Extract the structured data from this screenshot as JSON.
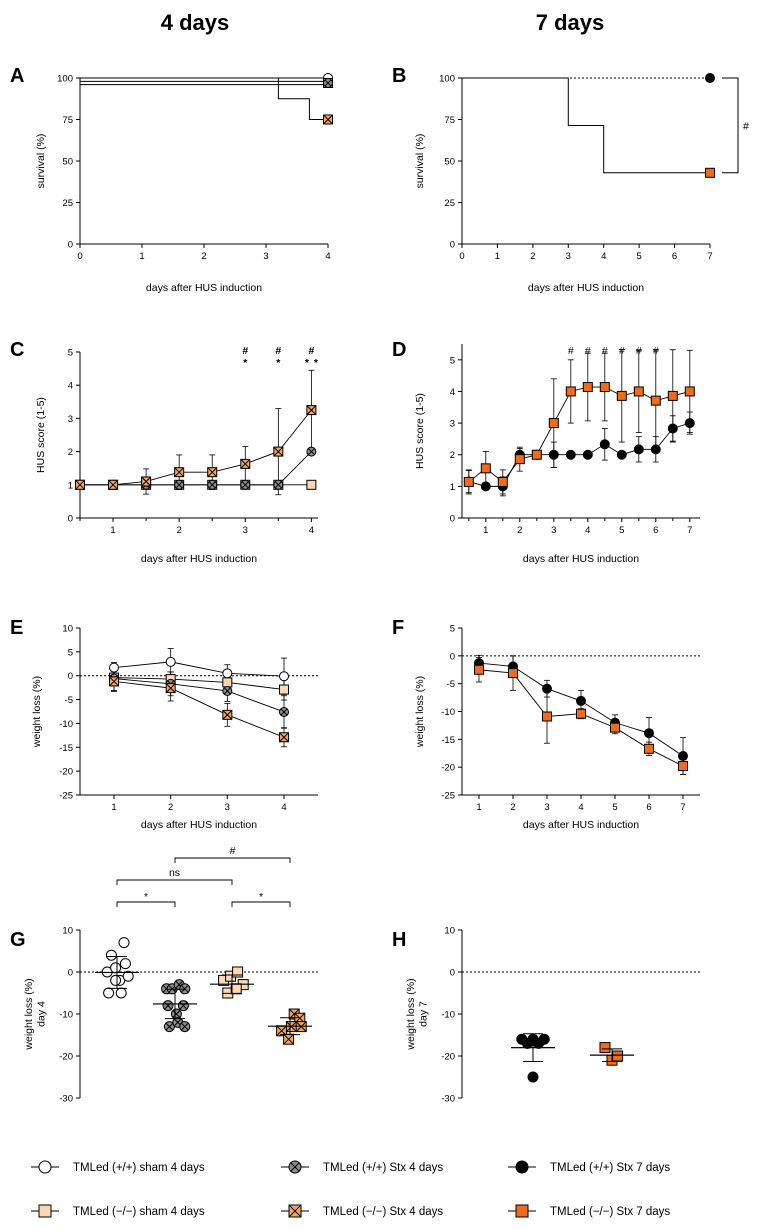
{
  "headers": {
    "left": "4 days",
    "right": "7 days"
  },
  "colors": {
    "wt_sham": "#ffffff",
    "wt_stx4": "#8c8c8c",
    "wt_stx7": "#000000",
    "ko_sham": "#fcd9b1",
    "ko_stx4": "#f3a55b",
    "ko_stx7": "#f26a1b",
    "star_orange": "#f5a623",
    "line": "#000000"
  },
  "legend": [
    {
      "key": "wt_sham",
      "label": "TMLed (+/+) sham 4 days",
      "marker": "circle-open-icon"
    },
    {
      "key": "wt_stx4",
      "label": "TMLed (+/+) Stx 4 days",
      "marker": "circle-cross-icon"
    },
    {
      "key": "wt_stx7",
      "label": "TMLed (+/+) Stx 7 days",
      "marker": "circle-filled-icon"
    },
    {
      "key": "ko_sham",
      "label": "TMLed (−/−) sham 4 days",
      "marker": "square-open-icon"
    },
    {
      "key": "ko_stx4",
      "label": "TMLed (−/−) Stx 4 days",
      "marker": "square-cross-icon"
    },
    {
      "key": "ko_stx7",
      "label": "TMLed (−/−) Stx 7 days",
      "marker": "square-filled-icon"
    }
  ],
  "chart_data": [
    {
      "panel": "A",
      "type": "line",
      "ylabel": "survival (%)",
      "xlabel": "days after HUS induction",
      "xlim": [
        0,
        4
      ],
      "ylim": [
        0,
        100
      ],
      "xticks": [
        0,
        1,
        2,
        3,
        4
      ],
      "yticks": [
        0,
        25,
        50,
        75,
        100
      ],
      "series": [
        {
          "key": "wt_sham",
          "name": "TMLed (+/+) sham 4 days",
          "step_x": [
            0,
            4
          ],
          "step_y": [
            100,
            100
          ],
          "marker_x": 4,
          "marker_y": 100
        },
        {
          "key": "ko_sham",
          "name": "TMLed (−/−) sham 4 days",
          "step_x": [
            0,
            4
          ],
          "step_y": [
            98,
            98
          ],
          "marker_x": 4,
          "marker_y": 97
        },
        {
          "key": "wt_stx4",
          "name": "TMLed (+/+) Stx 4 days",
          "step_x": [
            0,
            4
          ],
          "step_y": [
            96,
            96
          ],
          "marker_x": 4,
          "marker_y": 97
        },
        {
          "key": "ko_stx4",
          "name": "TMLed (−/−) Stx 4 days",
          "step_x": [
            0,
            3.2,
            3.2,
            3.7,
            3.7,
            4
          ],
          "step_y": [
            100,
            100,
            87.5,
            87.5,
            75,
            75
          ],
          "marker_x": 4,
          "marker_y": 75
        }
      ]
    },
    {
      "panel": "B",
      "type": "line",
      "ylabel": "survival (%)",
      "xlabel": "days after HUS induction",
      "xlim": [
        0,
        7
      ],
      "ylim": [
        0,
        100
      ],
      "xticks": [
        0,
        1,
        2,
        3,
        4,
        5,
        6,
        7
      ],
      "yticks": [
        0,
        25,
        50,
        75,
        100
      ],
      "reference_line": 100,
      "bracket_label": "#",
      "series": [
        {
          "key": "wt_stx7",
          "name": "TMLed (+/+) Stx 7 days",
          "step_x": [
            0,
            7
          ],
          "step_y": [
            100,
            100
          ],
          "marker_x": 7,
          "marker_y": 100
        },
        {
          "key": "ko_stx7",
          "name": "TMLed (−/−) Stx 7 days",
          "step_x": [
            0,
            3,
            3,
            4,
            4,
            7
          ],
          "step_y": [
            100,
            100,
            71.4,
            71.4,
            42.9,
            42.9
          ],
          "marker_x": 7,
          "marker_y": 42.9
        }
      ]
    },
    {
      "panel": "C",
      "type": "line",
      "ylabel": "HUS score (1-5)",
      "xlabel": "days after HUS induction",
      "xlim": [
        0.5,
        4.1
      ],
      "ylim": [
        0,
        5
      ],
      "xticks": [
        1,
        2,
        3,
        4
      ],
      "yticks": [
        0,
        1,
        2,
        3,
        4,
        5
      ],
      "minor_xticks": [
        0.5,
        1.5,
        2.5,
        3.5
      ],
      "annotations": [
        {
          "x": 3,
          "hash": "#",
          "stars": [
            {
              "text": "*",
              "color": "star_orange"
            }
          ]
        },
        {
          "x": 3.5,
          "hash": "#",
          "stars": [
            {
              "text": "*",
              "color": "star_orange"
            }
          ]
        },
        {
          "x": 4,
          "hash": "#",
          "stars": [
            {
              "text": "*",
              "color": "line"
            },
            {
              "text": "*",
              "color": "star_orange"
            }
          ]
        }
      ],
      "series": [
        {
          "key": "ko_sham",
          "x": [
            0.5,
            1,
            1.5,
            2,
            2.5,
            3,
            3.5,
            4
          ],
          "y": [
            1,
            1,
            1,
            1,
            1,
            1,
            1,
            1
          ],
          "err": [
            0,
            0,
            0,
            0,
            0,
            0,
            0,
            0
          ]
        },
        {
          "key": "wt_stx4",
          "x": [
            0.5,
            1,
            1.5,
            2,
            2.5,
            3,
            3.5,
            4
          ],
          "y": [
            1,
            1,
            1,
            1,
            1,
            1,
            1,
            2
          ],
          "err": [
            0,
            0,
            0,
            0,
            0,
            0,
            0,
            0
          ]
        },
        {
          "key": "ko_stx4",
          "x": [
            0.5,
            1,
            1.5,
            2,
            2.5,
            3,
            3.5,
            4
          ],
          "y": [
            1,
            1,
            1.1,
            1.38,
            1.38,
            1.63,
            2.0,
            3.25
          ],
          "err": [
            0,
            0,
            0.38,
            0.52,
            0.52,
            0.52,
            1.3,
            1.2
          ]
        }
      ]
    },
    {
      "panel": "D",
      "type": "line",
      "ylabel": "HUS score (1-5)",
      "xlabel": "days after HUS induction",
      "xlim": [
        0.3,
        7.3
      ],
      "ylim": [
        0,
        5.5
      ],
      "xticks": [
        1,
        2,
        3,
        4,
        5,
        6,
        7
      ],
      "yticks": [
        0,
        1,
        2,
        3,
        4,
        5
      ],
      "minor_xticks": [
        0.5,
        1.5,
        2.5,
        3.5,
        4.5,
        5.5,
        6.5
      ],
      "annotations": [
        {
          "x": 3.5,
          "hash": "#"
        },
        {
          "x": 4,
          "hash": "#"
        },
        {
          "x": 4.5,
          "hash": "#"
        },
        {
          "x": 5,
          "hash": "#"
        },
        {
          "x": 5.5,
          "hash": "#"
        },
        {
          "x": 6,
          "hash": "#"
        }
      ],
      "series": [
        {
          "key": "wt_stx7",
          "x": [
            0.5,
            1,
            1.5,
            2,
            2.5,
            3,
            3.5,
            4,
            4.5,
            5,
            5.5,
            6,
            6.5,
            7
          ],
          "y": [
            1.15,
            1.0,
            1.0,
            2.0,
            2.0,
            2.0,
            2.0,
            2.0,
            2.33,
            2.0,
            2.17,
            2.17,
            2.83,
            3.0
          ],
          "err": [
            0.35,
            0,
            0.3,
            0.2,
            0,
            0.4,
            0,
            0,
            0.5,
            0,
            0.4,
            0.4,
            0.4,
            0.35
          ]
        },
        {
          "key": "ko_stx7",
          "x": [
            0.5,
            1,
            1.5,
            2,
            2.5,
            3,
            3.5,
            4,
            4.5,
            5,
            5.5,
            6,
            6.5,
            7
          ],
          "y": [
            1.14,
            1.57,
            1.14,
            1.86,
            2.0,
            3.0,
            4.0,
            4.14,
            4.14,
            3.86,
            4.0,
            3.71,
            3.86,
            4.0
          ],
          "err": [
            0.38,
            0.53,
            0.38,
            0.38,
            0,
            1.4,
            1.0,
            1.07,
            1.07,
            1.46,
            1.3,
            1.6,
            1.46,
            1.3
          ]
        }
      ]
    },
    {
      "panel": "E",
      "type": "line",
      "ylabel": "weight loss (%)",
      "xlabel": "days after HUS induction",
      "xlim": [
        0.4,
        4.6
      ],
      "ylim": [
        -25,
        10
      ],
      "xticks": [
        1,
        2,
        3,
        4
      ],
      "yticks": [
        -25,
        -20,
        -15,
        -10,
        -5,
        0,
        5,
        10
      ],
      "reference_line": 0,
      "series": [
        {
          "key": "wt_sham",
          "x": [
            1,
            2,
            3,
            4
          ],
          "y": [
            1.7,
            2.9,
            0.5,
            -0.1
          ],
          "err": [
            1.1,
            2.8,
            1.8,
            3.8
          ]
        },
        {
          "key": "ko_sham",
          "x": [
            1,
            2,
            3,
            4
          ],
          "y": [
            -0.4,
            -0.7,
            -1.4,
            -2.9
          ],
          "err": [
            1.5,
            1.5,
            2.2,
            2.2
          ]
        },
        {
          "key": "wt_stx4",
          "x": [
            1,
            2,
            3,
            4
          ],
          "y": [
            -0.6,
            -1.7,
            -3.2,
            -7.6
          ],
          "err": [
            2.5,
            2.5,
            2.2,
            3.4
          ]
        },
        {
          "key": "ko_stx4",
          "x": [
            1,
            2,
            3,
            4
          ],
          "y": [
            -1.2,
            -2.6,
            -8.2,
            -12.9
          ],
          "err": [
            2.1,
            2.7,
            2.4,
            2.0
          ]
        }
      ]
    },
    {
      "panel": "F",
      "type": "line",
      "ylabel": "weight loss (%)",
      "xlabel": "days after HUS induction",
      "xlim": [
        0.5,
        7.5
      ],
      "ylim": [
        -25,
        5
      ],
      "xticks": [
        1,
        2,
        3,
        4,
        5,
        6,
        7
      ],
      "yticks": [
        -25,
        -20,
        -15,
        -10,
        -5,
        0,
        5
      ],
      "reference_line": 0,
      "series": [
        {
          "key": "wt_stx7",
          "x": [
            1,
            2,
            3,
            4,
            5,
            6,
            7
          ],
          "y": [
            -1.3,
            -1.9,
            -5.9,
            -8.1,
            -12.0,
            -13.9,
            -18.0
          ],
          "err": [
            1.4,
            1.9,
            1.5,
            1.9,
            1.4,
            2.8,
            3.3
          ]
        },
        {
          "key": "ko_stx7",
          "x": [
            1,
            2,
            3,
            4,
            5,
            6,
            7
          ],
          "y": [
            -2.5,
            -3.1,
            -10.9,
            -10.4,
            -12.9,
            -16.7,
            -19.8
          ],
          "err": [
            2.2,
            3.1,
            4.8,
            0.9,
            1.1,
            1.2,
            1.5
          ]
        }
      ]
    },
    {
      "panel": "G",
      "type": "scatter",
      "ylabel": "weight loss (%)",
      "ylabel2": "day 4",
      "ylim": [
        -30,
        10
      ],
      "yticks": [
        -30,
        -20,
        -10,
        0,
        10
      ],
      "reference_line": 0,
      "groups": [
        {
          "key": "wt_sham",
          "points": [
            [
              -0.35,
              0
            ],
            [
              -0.2,
              4
            ],
            [
              -0.05,
              1
            ],
            [
              0.1,
              -2
            ],
            [
              0.25,
              7
            ],
            [
              0.4,
              -1
            ],
            [
              -0.3,
              -5
            ],
            [
              0.15,
              -5
            ],
            [
              -0.05,
              -2
            ],
            [
              0.3,
              2
            ]
          ],
          "mean": -0.1,
          "sd": 3.8
        },
        {
          "key": "wt_stx4",
          "points": [
            [
              -0.3,
              -4
            ],
            [
              -0.1,
              -4
            ],
            [
              0.15,
              -3
            ],
            [
              0.35,
              -4
            ],
            [
              -0.25,
              -8
            ],
            [
              0.05,
              -10
            ],
            [
              0.3,
              -8
            ],
            [
              -0.2,
              -13
            ],
            [
              0.1,
              -12
            ],
            [
              0.35,
              -13
            ]
          ],
          "mean": -7.6,
          "sd": 3.5
        },
        {
          "key": "ko_sham",
          "points": [
            [
              -0.3,
              -2
            ],
            [
              -0.05,
              -1
            ],
            [
              0.2,
              0
            ],
            [
              0.4,
              -3
            ],
            [
              -0.15,
              -5
            ],
            [
              0.15,
              -4
            ]
          ],
          "mean": -2.9,
          "sd": 2.2
        },
        {
          "key": "ko_stx4",
          "points": [
            [
              -0.3,
              -14
            ],
            [
              -0.05,
              -16
            ],
            [
              0.15,
              -10
            ],
            [
              0.35,
              -11
            ],
            [
              0.05,
              -13
            ],
            [
              0.4,
              -13
            ]
          ],
          "mean": -12.9,
          "sd": 2.0
        }
      ],
      "comparisons": [
        {
          "from": 0,
          "to": 1,
          "label": "*",
          "level": 0
        },
        {
          "from": 0,
          "to": 2,
          "label": "ns",
          "level": 1
        },
        {
          "from": 2,
          "to": 3,
          "label": "*",
          "level": 0
        },
        {
          "from": 1,
          "to": 3,
          "label": "#",
          "level": 2
        }
      ]
    },
    {
      "panel": "H",
      "type": "scatter",
      "ylabel": "weight loss (%)",
      "ylabel2": "day 7",
      "ylim": [
        -30,
        10
      ],
      "yticks": [
        -30,
        -20,
        -10,
        0,
        10
      ],
      "reference_line": 0,
      "groups": [
        {
          "key": "wt_stx7",
          "points": [
            [
              -0.4,
              -16
            ],
            [
              -0.2,
              -17
            ],
            [
              0.0,
              -16
            ],
            [
              0.2,
              -17
            ],
            [
              0.4,
              -16
            ],
            [
              0.0,
              -25
            ]
          ],
          "mean": -18.0,
          "sd": 3.3
        },
        {
          "key": "ko_stx7",
          "points": [
            [
              -0.25,
              -18
            ],
            [
              0.0,
              -21
            ],
            [
              0.2,
              -20
            ]
          ],
          "mean": -19.8,
          "sd": 1.5
        }
      ]
    }
  ]
}
